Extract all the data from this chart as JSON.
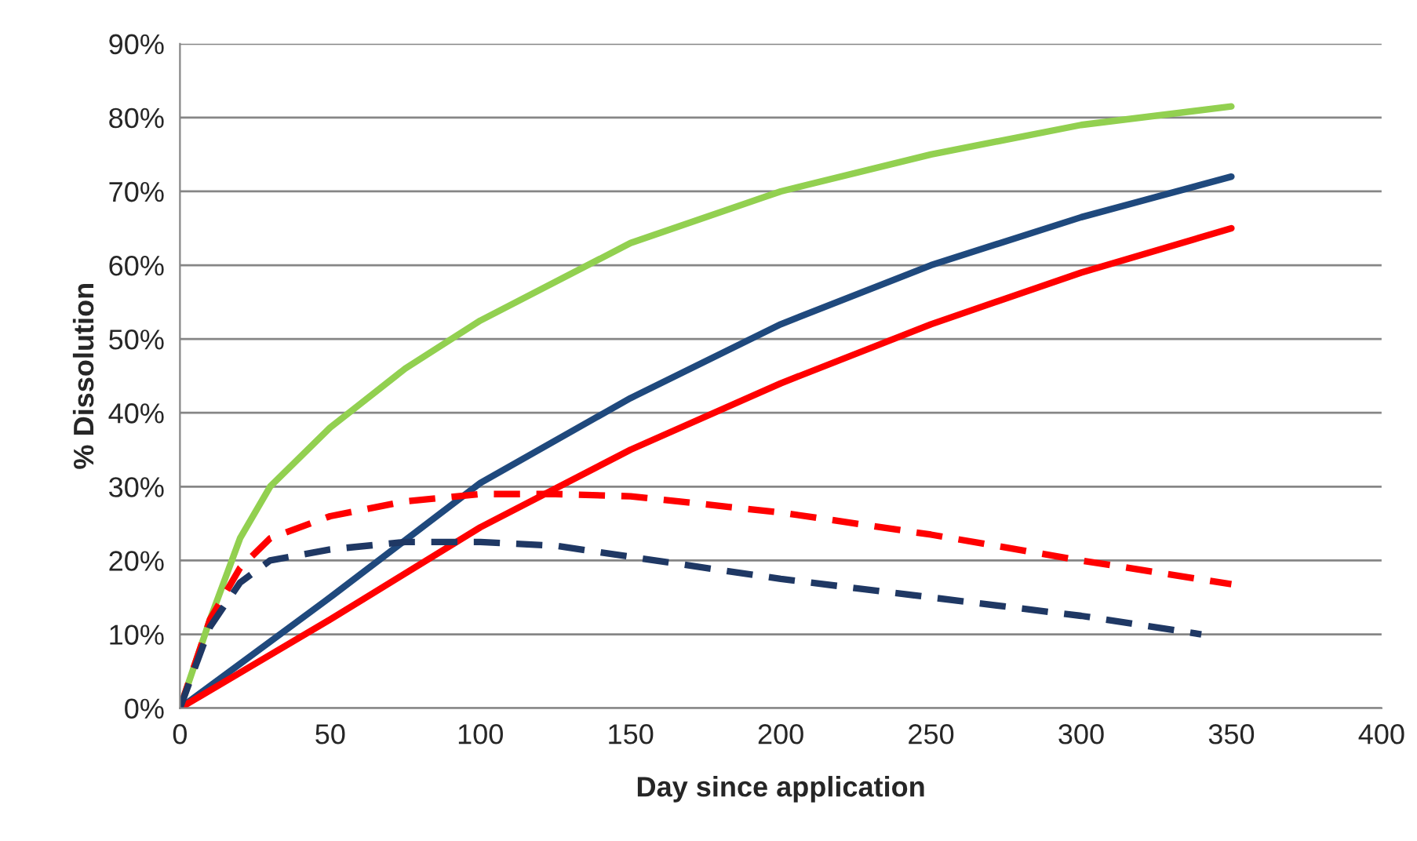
{
  "chart_data": {
    "type": "line",
    "xlabel": "Day since application",
    "ylabel": "% Dissolution",
    "xlim": [
      0,
      400
    ],
    "xticks": [
      0,
      50,
      100,
      150,
      200,
      250,
      300,
      350,
      400
    ],
    "ylim": [
      0,
      90
    ],
    "yticks": [
      {
        "value": 0,
        "label": "0%"
      },
      {
        "value": 10,
        "label": "10%"
      },
      {
        "value": 20,
        "label": "20%"
      },
      {
        "value": 30,
        "label": "30%"
      },
      {
        "value": 40,
        "label": "40%"
      },
      {
        "value": 50,
        "label": "50%"
      },
      {
        "value": 60,
        "label": "60%"
      },
      {
        "value": 70,
        "label": "70%"
      },
      {
        "value": 80,
        "label": "80%"
      },
      {
        "value": 90,
        "label": "90%"
      }
    ],
    "grid": "y",
    "legend": false,
    "marker": "none",
    "series": [
      {
        "color": "#92d050",
        "line_style": "solid",
        "x": [
          0,
          10,
          20,
          30,
          50,
          75,
          100,
          150,
          200,
          250,
          300,
          350
        ],
        "values": [
          0,
          12,
          23,
          30,
          38,
          46,
          52.5,
          63,
          70,
          75,
          79,
          81.5
        ]
      },
      {
        "color": "#1f497d",
        "line_style": "solid",
        "x": [
          0,
          50,
          100,
          150,
          200,
          250,
          300,
          350
        ],
        "values": [
          0,
          15,
          30.5,
          42,
          52,
          60,
          66.5,
          72
        ]
      },
      {
        "color": "#ff0000",
        "line_style": "solid",
        "x": [
          0,
          50,
          100,
          150,
          200,
          250,
          300,
          350
        ],
        "values": [
          0,
          12,
          24.5,
          35,
          44,
          52,
          59,
          65
        ]
      },
      {
        "color": "#ff0000",
        "line_style": "dashed",
        "x": [
          0,
          10,
          20,
          30,
          50,
          75,
          100,
          125,
          150,
          200,
          250,
          300,
          350
        ],
        "values": [
          0,
          12,
          19,
          23,
          26,
          28,
          29,
          29,
          28.7,
          26.5,
          23.5,
          20,
          16.8
        ]
      },
      {
        "color": "#1f3864",
        "line_style": "dashed",
        "x": [
          0,
          10,
          20,
          30,
          50,
          75,
          100,
          125,
          150,
          200,
          250,
          300,
          340
        ],
        "values": [
          0,
          11,
          17,
          20,
          21.5,
          22.5,
          22.5,
          22,
          20.5,
          17.5,
          15,
          12.5,
          10
        ]
      }
    ]
  }
}
